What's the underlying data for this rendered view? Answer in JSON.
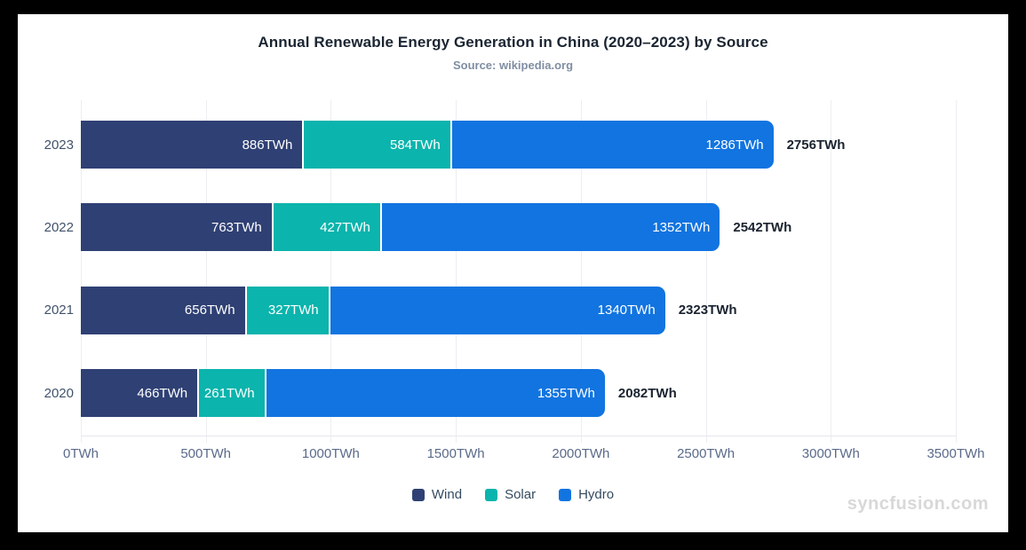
{
  "chart_data": {
    "type": "bar",
    "orientation": "horizontal",
    "stacked": true,
    "title": "Annual Renewable Energy Generation in China (2020–2023) by Source",
    "subtitle": "Source: wikipedia.org",
    "categories": [
      "2023",
      "2022",
      "2021",
      "2020"
    ],
    "series": [
      {
        "name": "Wind",
        "color": "#2f4074",
        "values": [
          886,
          763,
          656,
          466
        ]
      },
      {
        "name": "Solar",
        "color": "#0bb4ac",
        "values": [
          584,
          427,
          327,
          261
        ]
      },
      {
        "name": "Hydro",
        "color": "#1274e0",
        "values": [
          1286,
          1352,
          1340,
          1355
        ]
      }
    ],
    "totals": [
      2756,
      2542,
      2323,
      2082
    ],
    "value_suffix": "TWh",
    "xlim": [
      0,
      3500
    ],
    "x_tick_values": [
      0,
      500,
      1000,
      1500,
      2000,
      2500,
      3000,
      3500
    ],
    "x_tick_labels": [
      "0TWh",
      "500TWh",
      "1000TWh",
      "1500TWh",
      "2000TWh",
      "2500TWh",
      "3000TWh",
      "3500TWh"
    ],
    "legend": [
      "Wind",
      "Solar",
      "Hydro"
    ],
    "legend_position": "bottom",
    "grid": "vertical"
  },
  "watermark": "syncfusion.com",
  "colors": {
    "background": "#ffffff",
    "frame": "#000000",
    "wind": "#2f4074",
    "solar": "#0bb4ac",
    "hydro": "#1274e0",
    "gridline": "#eceef2",
    "bar_value_text": "#ffffff",
    "total_text": "#1a2330"
  }
}
